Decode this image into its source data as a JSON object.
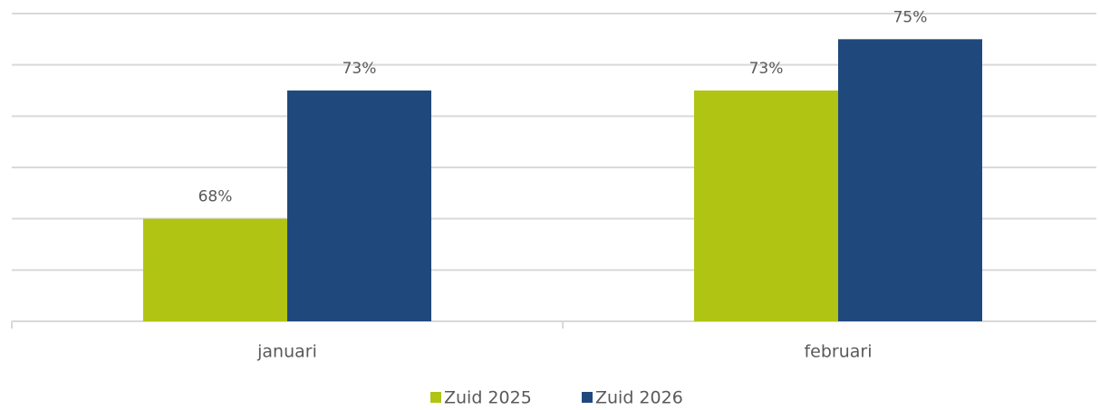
{
  "chart_data": {
    "type": "bar",
    "categories": [
      "januari",
      "februari"
    ],
    "series": [
      {
        "name": "Zuid 2025",
        "color": "#b0c414",
        "values": [
          68,
          73
        ],
        "value_labels": [
          "68%",
          "73%"
        ]
      },
      {
        "name": "Zuid 2026",
        "color": "#1f497d",
        "values": [
          73,
          75
        ],
        "value_labels": [
          "73%",
          "75%"
        ]
      }
    ],
    "ylim": [
      64,
      76
    ],
    "yticks": [
      64,
      66,
      68,
      70,
      72,
      74,
      76
    ],
    "grid": true,
    "legend": "bottom"
  }
}
